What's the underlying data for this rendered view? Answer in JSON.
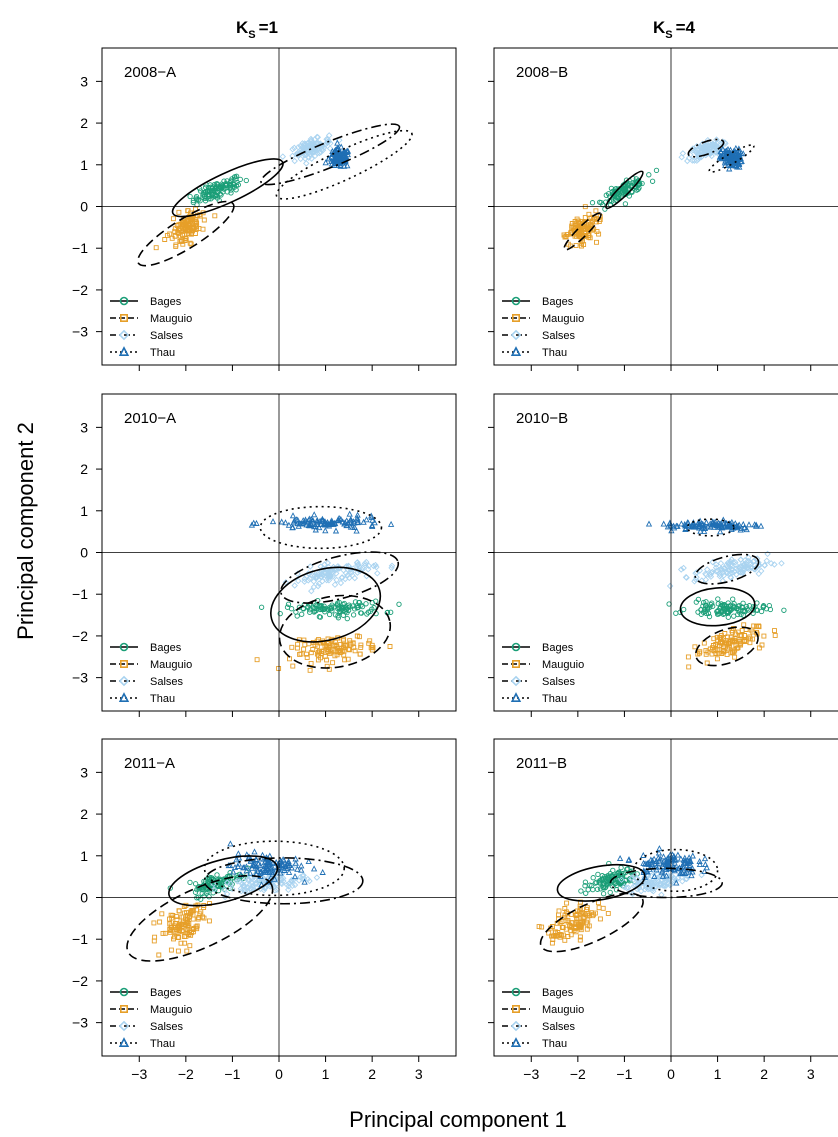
{
  "colors": {
    "Bages": "#1a9e77",
    "Mauguio": "#e69f29",
    "Salses": "#a9d3f0",
    "Thau": "#1f6fb4"
  },
  "column_titles": [
    "K",
    "K"
  ],
  "column_subscript": "S",
  "column_values": [
    "=1",
    "=4"
  ],
  "xlabel": "Principal component 1",
  "ylabel": "Principal component 2",
  "chart_data": [
    {
      "type": "scatter",
      "title": "2008−A",
      "xlim": [
        -3.8,
        3.8
      ],
      "ylim": [
        -3.8,
        3.8
      ],
      "xticks": [
        -3,
        -2,
        -1,
        0,
        1,
        2,
        3
      ],
      "yticks": [
        -3,
        -2,
        -1,
        0,
        1,
        2,
        3
      ],
      "legend": [
        "Bages",
        "Mauguio",
        "Salses",
        "Thau"
      ],
      "legend_position": "bottom-left",
      "series": [
        {
          "name": "Bages",
          "center": [
            -1.3,
            0.4
          ],
          "spread": [
            0.4,
            0.12
          ],
          "angle": 25
        },
        {
          "name": "Mauguio",
          "center": [
            -2.0,
            -0.5
          ],
          "spread": [
            0.3,
            0.2
          ],
          "angle": 50
        },
        {
          "name": "Salses",
          "center": [
            0.7,
            1.4
          ],
          "spread": [
            0.3,
            0.12
          ],
          "angle": 20
        },
        {
          "name": "Thau",
          "center": [
            1.3,
            1.15
          ],
          "spread": [
            0.15,
            0.15
          ],
          "angle": 0
        }
      ],
      "ellipses": [
        {
          "series": "Bages",
          "center": [
            -1.1,
            0.45
          ],
          "radii": [
            1.3,
            0.35
          ],
          "angle": 25
        },
        {
          "series": "Mauguio",
          "center": [
            -2.0,
            -0.65
          ],
          "radii": [
            1.2,
            0.35
          ],
          "angle": 32
        },
        {
          "series": "Salses",
          "center": [
            1.1,
            1.25
          ],
          "radii": [
            1.6,
            0.3
          ],
          "angle": 22
        },
        {
          "series": "Thau",
          "center": [
            1.4,
            1.0
          ],
          "radii": [
            1.6,
            0.35
          ],
          "angle": 25
        }
      ]
    },
    {
      "type": "scatter",
      "title": "2008−B",
      "xlim": [
        -3.8,
        3.8
      ],
      "ylim": [
        -3.8,
        3.8
      ],
      "xticks": [
        -3,
        -2,
        -1,
        0,
        1,
        2,
        3
      ],
      "yticks": [
        -3,
        -2,
        -1,
        0,
        1,
        2,
        3
      ],
      "legend": [
        "Bages",
        "Mauguio",
        "Salses",
        "Thau"
      ],
      "legend_position": "bottom-left",
      "series": [
        {
          "name": "Bages",
          "center": [
            -1.0,
            0.4
          ],
          "spread": [
            0.35,
            0.1
          ],
          "angle": 30
        },
        {
          "name": "Mauguio",
          "center": [
            -1.9,
            -0.55
          ],
          "spread": [
            0.3,
            0.2
          ],
          "angle": 50
        },
        {
          "name": "Salses",
          "center": [
            0.75,
            1.35
          ],
          "spread": [
            0.25,
            0.12
          ],
          "angle": 20
        },
        {
          "name": "Thau",
          "center": [
            1.3,
            1.15
          ],
          "spread": [
            0.15,
            0.15
          ],
          "angle": 0
        }
      ],
      "ellipses": [
        {
          "series": "Bages",
          "center": [
            -1.0,
            0.4
          ],
          "radii": [
            0.55,
            0.12
          ],
          "angle": 45
        },
        {
          "series": "Mauguio",
          "center": [
            -1.9,
            -0.6
          ],
          "radii": [
            0.55,
            0.12
          ],
          "angle": 45
        },
        {
          "series": "Salses",
          "center": [
            0.75,
            1.4
          ],
          "radii": [
            0.4,
            0.15
          ],
          "angle": 20
        },
        {
          "series": "Thau",
          "center": [
            1.3,
            1.15
          ],
          "radii": [
            0.55,
            0.12
          ],
          "angle": 30
        }
      ]
    },
    {
      "type": "scatter",
      "title": "2010−A",
      "xlim": [
        -3.8,
        3.8
      ],
      "ylim": [
        -3.8,
        3.8
      ],
      "xticks": [
        -3,
        -2,
        -1,
        0,
        1,
        2,
        3
      ],
      "yticks": [
        -3,
        -2,
        -1,
        0,
        1,
        2,
        3
      ],
      "legend": [
        "Bages",
        "Mauguio",
        "Salses",
        "Thau"
      ],
      "legend_position": "bottom-left",
      "series": [
        {
          "name": "Bages",
          "center": [
            1.2,
            -1.35
          ],
          "spread": [
            0.7,
            0.12
          ],
          "angle": 0
        },
        {
          "name": "Mauguio",
          "center": [
            1.2,
            -2.3
          ],
          "spread": [
            0.6,
            0.2
          ],
          "angle": 10
        },
        {
          "name": "Salses",
          "center": [
            1.2,
            -0.5
          ],
          "spread": [
            0.6,
            0.15
          ],
          "angle": 10
        },
        {
          "name": "Thau",
          "center": [
            1.0,
            0.7
          ],
          "spread": [
            0.8,
            0.1
          ],
          "angle": 0
        }
      ],
      "ellipses": [
        {
          "series": "Bages",
          "center": [
            1.0,
            -1.25
          ],
          "radii": [
            1.2,
            0.85
          ],
          "angle": 15
        },
        {
          "series": "Mauguio",
          "center": [
            1.2,
            -1.9
          ],
          "radii": [
            1.2,
            0.85
          ],
          "angle": 10
        },
        {
          "series": "Salses",
          "center": [
            1.3,
            -0.6
          ],
          "radii": [
            1.3,
            0.5
          ],
          "angle": 15
        },
        {
          "series": "Thau",
          "center": [
            0.9,
            0.6
          ],
          "radii": [
            1.3,
            0.5
          ],
          "angle": 0
        }
      ]
    },
    {
      "type": "scatter",
      "title": "2010−B",
      "xlim": [
        -3.8,
        3.8
      ],
      "ylim": [
        -3.8,
        3.8
      ],
      "xticks": [
        -3,
        -2,
        -1,
        0,
        1,
        2,
        3
      ],
      "yticks": [
        -3,
        -2,
        -1,
        0,
        1,
        2,
        3
      ],
      "legend": [
        "Bages",
        "Mauguio",
        "Salses",
        "Thau"
      ],
      "legend_position": "bottom-left",
      "series": [
        {
          "name": "Bages",
          "center": [
            1.2,
            -1.35
          ],
          "spread": [
            0.55,
            0.12
          ],
          "angle": 0
        },
        {
          "name": "Mauguio",
          "center": [
            1.2,
            -2.2
          ],
          "spread": [
            0.5,
            0.2
          ],
          "angle": 20
        },
        {
          "name": "Salses",
          "center": [
            1.3,
            -0.4
          ],
          "spread": [
            0.55,
            0.15
          ],
          "angle": 10
        },
        {
          "name": "Thau",
          "center": [
            0.9,
            0.65
          ],
          "spread": [
            0.7,
            0.08
          ],
          "angle": 0
        }
      ],
      "ellipses": [
        {
          "series": "Bages",
          "center": [
            1.0,
            -1.3
          ],
          "radii": [
            0.8,
            0.45
          ],
          "angle": 5
        },
        {
          "series": "Mauguio",
          "center": [
            1.2,
            -2.25
          ],
          "radii": [
            0.7,
            0.4
          ],
          "angle": 20
        },
        {
          "series": "Salses",
          "center": [
            1.2,
            -0.4
          ],
          "radii": [
            0.7,
            0.3
          ],
          "angle": 15
        },
        {
          "series": "Thau",
          "center": [
            0.85,
            0.6
          ],
          "radii": [
            0.5,
            0.2
          ],
          "angle": 0
        }
      ]
    },
    {
      "type": "scatter",
      "title": "2011−A",
      "xlim": [
        -3.8,
        3.8
      ],
      "ylim": [
        -3.8,
        3.8
      ],
      "xticks": [
        -3,
        -2,
        -1,
        0,
        1,
        2,
        3
      ],
      "yticks": [
        -3,
        -2,
        -1,
        0,
        1,
        2,
        3
      ],
      "legend": [
        "Bages",
        "Mauguio",
        "Salses",
        "Thau"
      ],
      "legend_position": "bottom-left",
      "series": [
        {
          "name": "Bages",
          "center": [
            -1.3,
            0.35
          ],
          "spread": [
            0.4,
            0.15
          ],
          "angle": 20
        },
        {
          "name": "Mauguio",
          "center": [
            -2.1,
            -0.65
          ],
          "spread": [
            0.4,
            0.25
          ],
          "angle": 40
        },
        {
          "name": "Salses",
          "center": [
            -0.3,
            0.35
          ],
          "spread": [
            0.6,
            0.15
          ],
          "angle": 10
        },
        {
          "name": "Thau",
          "center": [
            -0.3,
            0.75
          ],
          "spread": [
            0.5,
            0.2
          ],
          "angle": 0
        }
      ],
      "ellipses": [
        {
          "series": "Bages",
          "center": [
            -1.2,
            0.4
          ],
          "radii": [
            1.2,
            0.5
          ],
          "angle": 15
        },
        {
          "series": "Mauguio",
          "center": [
            -1.7,
            -0.5
          ],
          "radii": [
            1.7,
            0.7
          ],
          "angle": 25
        },
        {
          "series": "Salses",
          "center": [
            0.1,
            0.4
          ],
          "radii": [
            1.7,
            0.55
          ],
          "angle": 0
        },
        {
          "series": "Thau",
          "center": [
            -0.1,
            0.7
          ],
          "radii": [
            1.5,
            0.65
          ],
          "angle": 0
        }
      ]
    },
    {
      "type": "scatter",
      "title": "2011−B",
      "xlim": [
        -3.8,
        3.8
      ],
      "ylim": [
        -3.8,
        3.8
      ],
      "xticks": [
        -3,
        -2,
        -1,
        0,
        1,
        2,
        3
      ],
      "yticks": [
        -3,
        -2,
        -1,
        0,
        1,
        2,
        3
      ],
      "legend": [
        "Bages",
        "Mauguio",
        "Salses",
        "Thau"
      ],
      "legend_position": "bottom-left",
      "series": [
        {
          "name": "Bages",
          "center": [
            -1.3,
            0.4
          ],
          "spread": [
            0.4,
            0.15
          ],
          "angle": 20
        },
        {
          "name": "Mauguio",
          "center": [
            -2.1,
            -0.6
          ],
          "spread": [
            0.4,
            0.25
          ],
          "angle": 40
        },
        {
          "name": "Salses",
          "center": [
            -0.3,
            0.4
          ],
          "spread": [
            0.5,
            0.15
          ],
          "angle": 10
        },
        {
          "name": "Thau",
          "center": [
            -0.1,
            0.8
          ],
          "spread": [
            0.45,
            0.2
          ],
          "angle": 0
        }
      ],
      "ellipses": [
        {
          "series": "Bages",
          "center": [
            -1.5,
            0.35
          ],
          "radii": [
            0.95,
            0.4
          ],
          "angle": 10
        },
        {
          "series": "Mauguio",
          "center": [
            -1.7,
            -0.6
          ],
          "radii": [
            1.2,
            0.45
          ],
          "angle": 25
        },
        {
          "series": "Salses",
          "center": [
            -0.1,
            0.35
          ],
          "radii": [
            1.2,
            0.35
          ],
          "angle": 0
        },
        {
          "series": "Thau",
          "center": [
            0.1,
            0.65
          ],
          "radii": [
            0.9,
            0.5
          ],
          "angle": 0
        }
      ]
    }
  ]
}
